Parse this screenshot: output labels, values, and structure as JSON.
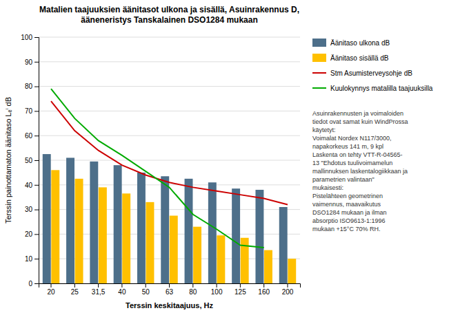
{
  "chart_data": {
    "type": "bar",
    "title": "Matalien taajuuksien äänitasot ulkona ja sisällä, Asuinrakennus D,\nääneneristys Tanskalainen DSO1284 mukaan",
    "x_label": "Terssin keskitaajuus, Hz",
    "y_label": "Terssin painottamaton äänitaso Lₑⁱ dB",
    "categories": [
      "20",
      "25",
      "31,5",
      "40",
      "50",
      "63",
      "80",
      "100",
      "125",
      "160",
      "200"
    ],
    "series": [
      {
        "name": "Äänitaso ulkona dB",
        "type": "bar",
        "color": "#4D6F8A",
        "values": [
          52.5,
          51.0,
          49.5,
          48.0,
          45.0,
          43.5,
          42.5,
          41.0,
          38.5,
          38.0,
          31.0
        ]
      },
      {
        "name": "Äänitaso sisällä dB",
        "type": "bar",
        "color": "#FFC000",
        "values": [
          46.0,
          42.5,
          39.0,
          36.5,
          33.0,
          27.5,
          23.0,
          19.5,
          18.5,
          13.5,
          10.0
        ]
      },
      {
        "name": "Stm Asumisterveysohje dB",
        "type": "line",
        "color": "#CC0000",
        "values": [
          74.0,
          62.0,
          54.0,
          48.0,
          44.0,
          41.0,
          39.0,
          37.5,
          36.0,
          34.5,
          32.0
        ]
      },
      {
        "name": "Kuulokynnys matalilla taajuuksilla",
        "type": "line",
        "color": "#00AA00",
        "values": [
          79.0,
          67.0,
          58.0,
          52.0,
          45.5,
          39.0,
          28.0,
          22.0,
          15.5,
          14.5,
          null
        ]
      }
    ],
    "ylim": [
      0,
      100
    ],
    "yticks": [
      0,
      10,
      20,
      30,
      40,
      50,
      60,
      70,
      80,
      90,
      100
    ],
    "grid": true,
    "legend": "right",
    "annotation": "Asuinrakennusten ja voimaloiden\ntiedot ovat samat kuin WindProssa\nkäytetyt:\nVoimalat Nordex N117/3000,\nnapakorkeus 141 m, 9 kpl\nLaskenta on tehty VTT-R-04565-\n13 \"Ehdotus tuulivoimamelun\nmallinnuksen laskentalogiikkaan ja\nparametrien valintaan\"\nmukaisesti:\nPistelähteen geometrinen\nvaimennus, maavaikutus\nDSO1284 mukaan ja ilman\nabsorptio ISO9613-1:1996\nmukaan +15°C 70% RH."
  }
}
